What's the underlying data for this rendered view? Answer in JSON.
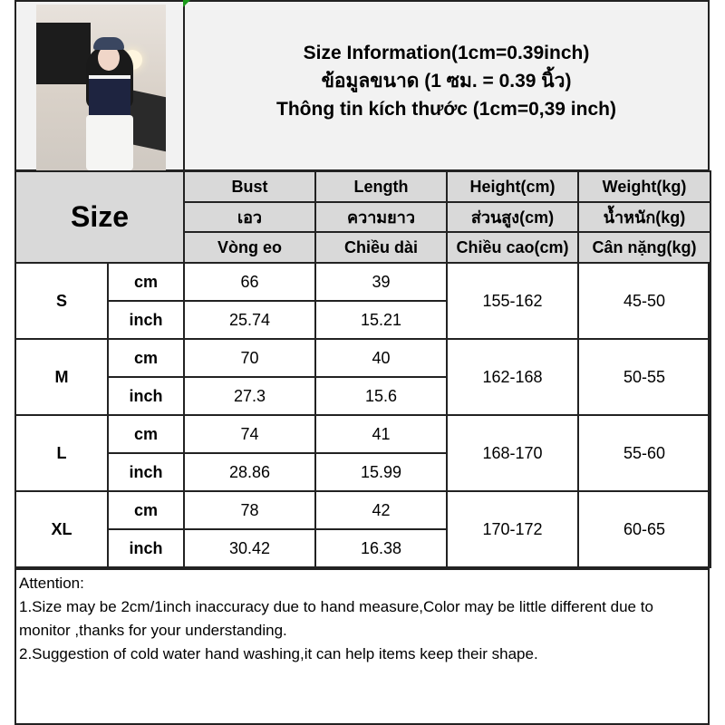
{
  "title": {
    "line1": "Size Information(1cm=0.39inch)",
    "line2": "ข้อมูลขนาด (1 ซม. = 0.39 นิ้ว)",
    "line3": "Thông tin kích thước (1cm=0,39 inch)"
  },
  "table": {
    "size_header": "Size",
    "columns": [
      {
        "en": "Bust",
        "th": "เอว",
        "vi": "Vòng eo"
      },
      {
        "en": "Length",
        "th": "ความยาว",
        "vi": "Chiều dài"
      },
      {
        "en": "Height(cm)",
        "th": "ส่วนสูง(cm)",
        "vi": "Chiều cao(cm)"
      },
      {
        "en": "Weight(kg)",
        "th": "น้ำหนัก(kg)",
        "vi": "Cân nặng(kg)"
      }
    ],
    "unit_cm": "cm",
    "unit_inch": "inch",
    "rows": [
      {
        "size": "S",
        "bust_cm": "66",
        "length_cm": "39",
        "bust_inch": "25.74",
        "length_inch": "15.21",
        "height": "155-162",
        "weight": "45-50"
      },
      {
        "size": "M",
        "bust_cm": "70",
        "length_cm": "40",
        "bust_inch": "27.3",
        "length_inch": "15.6",
        "height": "162-168",
        "weight": "50-55"
      },
      {
        "size": "L",
        "bust_cm": "74",
        "length_cm": "41",
        "bust_inch": "28.86",
        "length_inch": "15.99",
        "height": "168-170",
        "weight": "55-60"
      },
      {
        "size": "XL",
        "bust_cm": "78",
        "length_cm": "42",
        "bust_inch": "30.42",
        "length_inch": "16.38",
        "height": "170-172",
        "weight": "60-65"
      }
    ]
  },
  "attention": {
    "heading": "Attention:",
    "note1": "1.Size may be 2cm/1inch inaccuracy due to hand measure,Color may be little different due to monitor ,thanks for your understanding.",
    "note2": "2.Suggestion of cold water hand washing,it can help items keep their shape."
  },
  "colors": {
    "header_bg": "#d9d9d9",
    "title_bg": "#f2f2f2",
    "border": "#222222"
  }
}
